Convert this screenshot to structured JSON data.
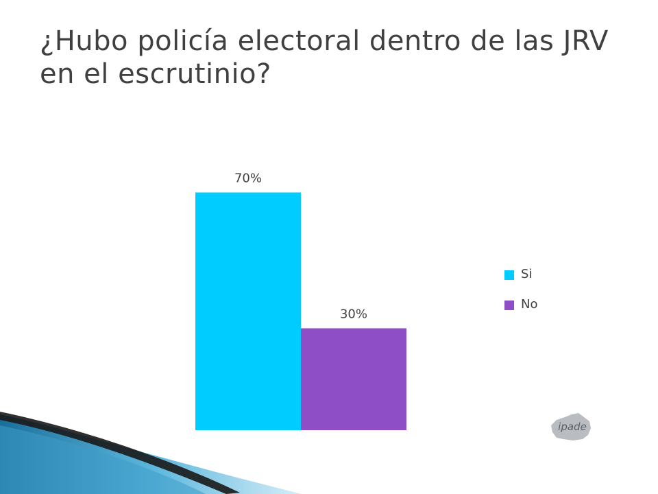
{
  "slide": {
    "title": "¿Hubo policía electoral dentro de las JRV en el escrutinio?"
  },
  "logo": {
    "text": "ipade"
  },
  "chart_data": {
    "type": "bar",
    "categories": [
      "Si",
      "No"
    ],
    "values": [
      70,
      30
    ],
    "value_labels": [
      "70%",
      "30%"
    ],
    "colors": [
      "#00CCFF",
      "#8E4EC6"
    ],
    "ylim": [
      0,
      100
    ],
    "grid": false,
    "legend": {
      "placement": "right",
      "items": [
        {
          "label": "Si",
          "color": "#00CCFF"
        },
        {
          "label": "No",
          "color": "#8E4EC6"
        }
      ]
    }
  }
}
